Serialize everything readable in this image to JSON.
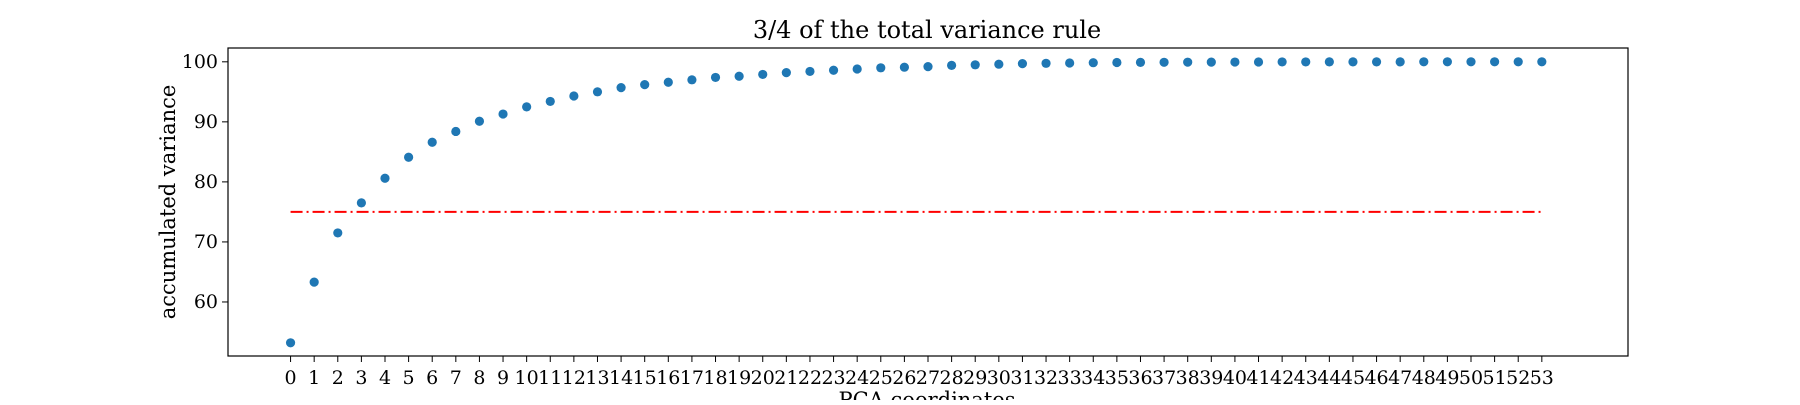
{
  "chart_data": {
    "type": "scatter",
    "title": "3/4 of the total variance rule",
    "xlabel": "PCA coordinates",
    "ylabel": "accumulated variance",
    "x": [
      0,
      1,
      2,
      3,
      4,
      5,
      6,
      7,
      8,
      9,
      10,
      11,
      12,
      13,
      14,
      15,
      16,
      17,
      18,
      19,
      20,
      21,
      22,
      23,
      24,
      25,
      26,
      27,
      28,
      29,
      30,
      31,
      32,
      33,
      34,
      35,
      36,
      37,
      38,
      39,
      40,
      41,
      42,
      43,
      44,
      45,
      46,
      47,
      48,
      49,
      50,
      51,
      52,
      53
    ],
    "y": [
      53.2,
      63.3,
      71.5,
      76.5,
      80.6,
      84.1,
      86.6,
      88.4,
      90.1,
      91.3,
      92.5,
      93.4,
      94.3,
      95.0,
      95.7,
      96.2,
      96.6,
      97.0,
      97.4,
      97.6,
      97.9,
      98.2,
      98.4,
      98.6,
      98.8,
      99.0,
      99.1,
      99.2,
      99.4,
      99.5,
      99.6,
      99.7,
      99.75,
      99.8,
      99.85,
      99.88,
      99.9,
      99.92,
      99.94,
      99.95,
      99.96,
      99.97,
      99.98,
      99.98,
      99.99,
      99.99,
      99.99,
      99.99,
      100,
      100,
      100,
      100,
      100,
      100
    ],
    "xticks": [
      "0",
      "1",
      "2",
      "3",
      "4",
      "5",
      "6",
      "7",
      "8",
      "9",
      "10",
      "11",
      "12",
      "13",
      "14",
      "15",
      "16",
      "17",
      "18",
      "19",
      "20",
      "21",
      "22",
      "23",
      "24",
      "25",
      "26",
      "27",
      "28",
      "29",
      "30",
      "31",
      "32",
      "33",
      "34",
      "35",
      "36",
      "37",
      "38",
      "39",
      "40",
      "41",
      "42",
      "43",
      "44",
      "45",
      "46",
      "47",
      "48",
      "49",
      "50",
      "51",
      "52",
      "53"
    ],
    "yticks": [
      60,
      70,
      80,
      90,
      100
    ],
    "xlim": [
      -2.65,
      56.65
    ],
    "ylim": [
      51.0,
      102.3
    ],
    "threshold": {
      "y": 75,
      "x_from": 0,
      "x_to": 53,
      "color": "#ff0000",
      "style": "dash-dot"
    },
    "marker_color": "#1f77b4",
    "grid": false
  }
}
